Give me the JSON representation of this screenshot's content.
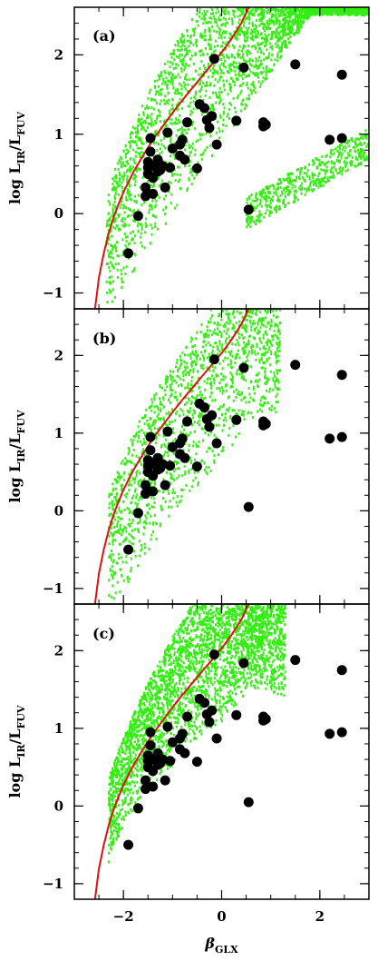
{
  "colors": {
    "model_points": "#33ee11",
    "curve": "#dd1111",
    "observed": "#000000",
    "frame": "#000000",
    "background": "#ffffff"
  },
  "chart_data": {
    "type": "scatter",
    "shared_x": {
      "label_main": "β",
      "label_sub": "GLX",
      "lim": [
        -3.0,
        3.0
      ],
      "ticks": [
        -2,
        0,
        2
      ],
      "tick_labels": [
        "−2",
        "0",
        "2"
      ]
    },
    "shared_y": {
      "label_main": "log  L",
      "label_sub1": "IR",
      "label_slash": "/L",
      "label_sub2": "FUV",
      "lim": [
        -1.2,
        2.6
      ],
      "ticks": [
        -1,
        0,
        1,
        2
      ],
      "tick_labels": [
        "−1",
        "0",
        "1",
        "2"
      ]
    },
    "reference_curve": {
      "description": "solid red curve common to all panels",
      "x": [
        -2.58,
        -2.5,
        -2.4,
        -2.3,
        -2.2,
        -2.1,
        -2.0,
        -1.8,
        -1.6,
        -1.4,
        -1.2,
        -1.0,
        -0.8,
        -0.6,
        -0.4,
        -0.2,
        0.0,
        0.2,
        0.4,
        0.55
      ],
      "y": [
        -1.2,
        -0.81,
        -0.5,
        -0.25,
        -0.05,
        0.12,
        0.27,
        0.52,
        0.73,
        0.93,
        1.1,
        1.27,
        1.43,
        1.58,
        1.73,
        1.88,
        2.03,
        2.2,
        2.4,
        2.6
      ]
    },
    "observed_points": {
      "x": [
        -1.9,
        -1.7,
        -1.55,
        -1.55,
        -1.5,
        -1.5,
        -1.5,
        -1.45,
        -1.45,
        -1.4,
        -1.4,
        -1.4,
        -1.35,
        -1.3,
        -1.3,
        -1.25,
        -1.2,
        -1.15,
        -1.1,
        -1.05,
        -1.0,
        -0.85,
        -0.85,
        -0.8,
        -0.75,
        -0.7,
        -0.5,
        -0.45,
        -0.35,
        -0.3,
        -0.25,
        -0.2,
        -0.15,
        -0.1,
        0.3,
        0.45,
        0.55,
        0.85,
        0.85,
        0.9,
        1.5,
        2.2,
        2.45,
        2.45
      ],
      "y": [
        -0.5,
        -0.03,
        0.33,
        0.22,
        0.58,
        0.5,
        0.65,
        0.78,
        0.95,
        0.45,
        0.25,
        0.6,
        0.6,
        0.53,
        0.68,
        0.55,
        0.6,
        0.33,
        1.02,
        0.58,
        0.82,
        0.87,
        0.73,
        0.93,
        0.68,
        1.15,
        0.57,
        1.38,
        1.33,
        1.18,
        1.08,
        1.23,
        1.95,
        0.87,
        1.17,
        1.84,
        0.05,
        1.1,
        1.15,
        1.12,
        1.88,
        0.93,
        1.75,
        0.95
      ]
    },
    "panels": [
      {
        "label": "(a)",
        "model_region": "wide",
        "show_x_tick_labels": false,
        "show_x_title": false
      },
      {
        "label": "(b)",
        "model_region": "medium",
        "show_x_tick_labels": false,
        "show_x_title": false
      },
      {
        "label": "(c)",
        "model_region": "narrow",
        "show_x_tick_labels": true,
        "show_x_title": true
      }
    ]
  }
}
